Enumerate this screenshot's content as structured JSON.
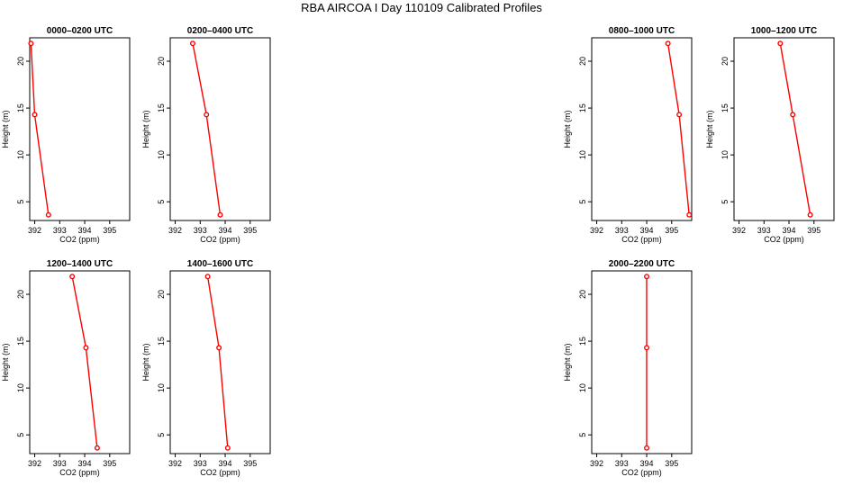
{
  "page": {
    "title": "RBA AIRCOA I  Day 110109  Calibrated Profiles"
  },
  "style": {
    "series_color": "#ff0000",
    "axis_color": "#000000"
  },
  "chart_data": [
    {
      "type": "line",
      "title": "0000–0200 UTC",
      "xlabel": "CO2 (ppm)",
      "ylabel": "Height (m)",
      "xlim": [
        391.8,
        395.8
      ],
      "ylim": [
        3,
        22.5
      ],
      "xticks": [
        "392",
        "393",
        "394",
        "395"
      ],
      "yticks": [
        "5",
        "10",
        "15",
        "20"
      ],
      "series": [
        {
          "x": [
            391.85,
            392.0,
            392.55
          ],
          "y": [
            21.9,
            14.3,
            3.6
          ]
        }
      ]
    },
    {
      "type": "line",
      "title": "0200–0400 UTC",
      "xlabel": "CO2 (ppm)",
      "ylabel": "Height (m)",
      "xlim": [
        391.8,
        395.8
      ],
      "ylim": [
        3,
        22.5
      ],
      "xticks": [
        "392",
        "393",
        "394",
        "395"
      ],
      "yticks": [
        "5",
        "10",
        "15",
        "20"
      ],
      "series": [
        {
          "x": [
            392.7,
            393.25,
            393.8
          ],
          "y": [
            21.9,
            14.3,
            3.6
          ]
        }
      ]
    },
    {
      "type": "line",
      "title": "0800–1000 UTC",
      "xlabel": "CO2 (ppm)",
      "ylabel": "Height (m)",
      "xlim": [
        391.8,
        395.8
      ],
      "ylim": [
        3,
        22.5
      ],
      "xticks": [
        "392",
        "393",
        "394",
        "395"
      ],
      "yticks": [
        "5",
        "10",
        "15",
        "20"
      ],
      "series": [
        {
          "x": [
            394.85,
            395.3,
            395.7
          ],
          "y": [
            21.9,
            14.3,
            3.6
          ]
        }
      ]
    },
    {
      "type": "line",
      "title": "1000–1200 UTC",
      "xlabel": "CO2 (ppm)",
      "ylabel": "Height (m)",
      "xlim": [
        391.8,
        395.8
      ],
      "ylim": [
        3,
        22.5
      ],
      "xticks": [
        "392",
        "393",
        "394",
        "395"
      ],
      "yticks": [
        "5",
        "10",
        "15",
        "20"
      ],
      "series": [
        {
          "x": [
            393.65,
            394.15,
            394.85
          ],
          "y": [
            21.9,
            14.3,
            3.6
          ]
        }
      ]
    },
    {
      "type": "line",
      "title": "1200–1400 UTC",
      "xlabel": "CO2 (ppm)",
      "ylabel": "Height (m)",
      "xlim": [
        391.8,
        395.8
      ],
      "ylim": [
        3,
        22.5
      ],
      "xticks": [
        "392",
        "393",
        "394",
        "395"
      ],
      "yticks": [
        "5",
        "10",
        "15",
        "20"
      ],
      "series": [
        {
          "x": [
            393.5,
            394.05,
            394.5
          ],
          "y": [
            21.9,
            14.3,
            3.6
          ]
        }
      ]
    },
    {
      "type": "line",
      "title": "1400–1600 UTC",
      "xlabel": "CO2 (ppm)",
      "ylabel": "Height (m)",
      "xlim": [
        391.8,
        395.8
      ],
      "ylim": [
        3,
        22.5
      ],
      "xticks": [
        "392",
        "393",
        "394",
        "395"
      ],
      "yticks": [
        "5",
        "10",
        "15",
        "20"
      ],
      "series": [
        {
          "x": [
            393.3,
            393.75,
            394.1
          ],
          "y": [
            21.9,
            14.3,
            3.6
          ]
        }
      ]
    },
    {
      "type": "line",
      "title": "2000–2200 UTC",
      "xlabel": "CO2 (ppm)",
      "ylabel": "Height (m)",
      "xlim": [
        391.8,
        395.8
      ],
      "ylim": [
        3,
        22.5
      ],
      "xticks": [
        "392",
        "393",
        "394",
        "395"
      ],
      "yticks": [
        "5",
        "10",
        "15",
        "20"
      ],
      "series": [
        {
          "x": [
            394.0,
            394.0,
            394.0
          ],
          "y": [
            21.9,
            14.3,
            3.6
          ]
        }
      ]
    }
  ]
}
